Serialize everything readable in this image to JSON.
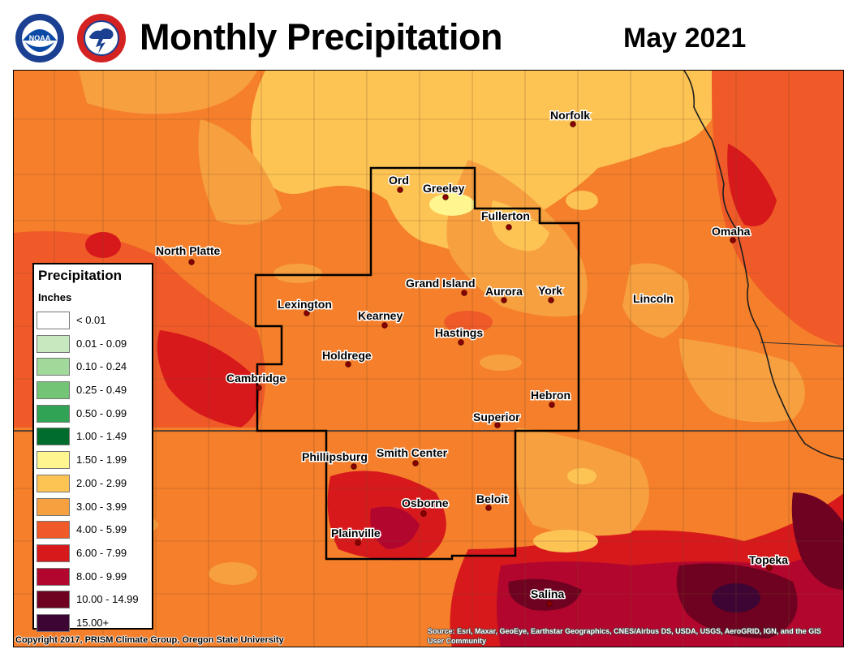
{
  "header": {
    "title": "Monthly Precipitation",
    "period": "May 2021",
    "logos": [
      "noaa-logo",
      "national-weather-service-logo"
    ]
  },
  "legend": {
    "title": "Precipitation",
    "units": "Inches",
    "items": [
      {
        "label": "< 0.01",
        "color": "#ffffff"
      },
      {
        "label": "0.01 - 0.09",
        "color": "#c7e9c0"
      },
      {
        "label": "0.10 - 0.24",
        "color": "#a1d99b"
      },
      {
        "label": "0.25 - 0.49",
        "color": "#74c476"
      },
      {
        "label": "0.50 - 0.99",
        "color": "#31a354"
      },
      {
        "label": "1.00 - 1.49",
        "color": "#006d2c"
      },
      {
        "label": "1.50 - 1.99",
        "color": "#fff68f"
      },
      {
        "label": "2.00 - 2.99",
        "color": "#fdc454"
      },
      {
        "label": "3.00 - 3.99",
        "color": "#f7a040"
      },
      {
        "label": "4.00 - 5.99",
        "color": "#f05a28"
      },
      {
        "label": "6.00 - 7.99",
        "color": "#d7191c"
      },
      {
        "label": "8.00 - 9.99",
        "color": "#b3062e"
      },
      {
        "label": "10.00 - 14.99",
        "color": "#6e0220"
      },
      {
        "label": "15.00+",
        "color": "#3d0533"
      }
    ]
  },
  "cities": [
    {
      "name": "Norfolk"
    },
    {
      "name": "Ord"
    },
    {
      "name": "Greeley"
    },
    {
      "name": "Fullerton"
    },
    {
      "name": "Omaha"
    },
    {
      "name": "North Platte"
    },
    {
      "name": "Grand Island"
    },
    {
      "name": "Aurora"
    },
    {
      "name": "York"
    },
    {
      "name": "Lincoln"
    },
    {
      "name": "Lexington"
    },
    {
      "name": "Kearney"
    },
    {
      "name": "Hastings"
    },
    {
      "name": "Holdrege"
    },
    {
      "name": "Cambridge"
    },
    {
      "name": "Hebron"
    },
    {
      "name": "Superior"
    },
    {
      "name": "Phillipsburg"
    },
    {
      "name": "Smith Center"
    },
    {
      "name": "Osborne"
    },
    {
      "name": "Beloit"
    },
    {
      "name": "Plainville"
    },
    {
      "name": "Salina"
    },
    {
      "name": "Topeka"
    }
  ],
  "colors": {
    "light_orange": "#fdc454",
    "orange": "#f7a040",
    "orange_red": "#f05a28",
    "red": "#d7191c",
    "dark_red": "#b3062e",
    "maroon": "#6e0220",
    "yellow": "#fff68f",
    "city_dot": "#8b0000"
  },
  "footer": {
    "copyright": "Copyright 2017, PRISM Climate Group, Oregon State University",
    "sources": "Source: Esri, Maxar, GeoEye, Earthstar Geographics, CNES/Airbus DS, USDA, USGS, AeroGRID, IGN, and the GIS User Community"
  }
}
